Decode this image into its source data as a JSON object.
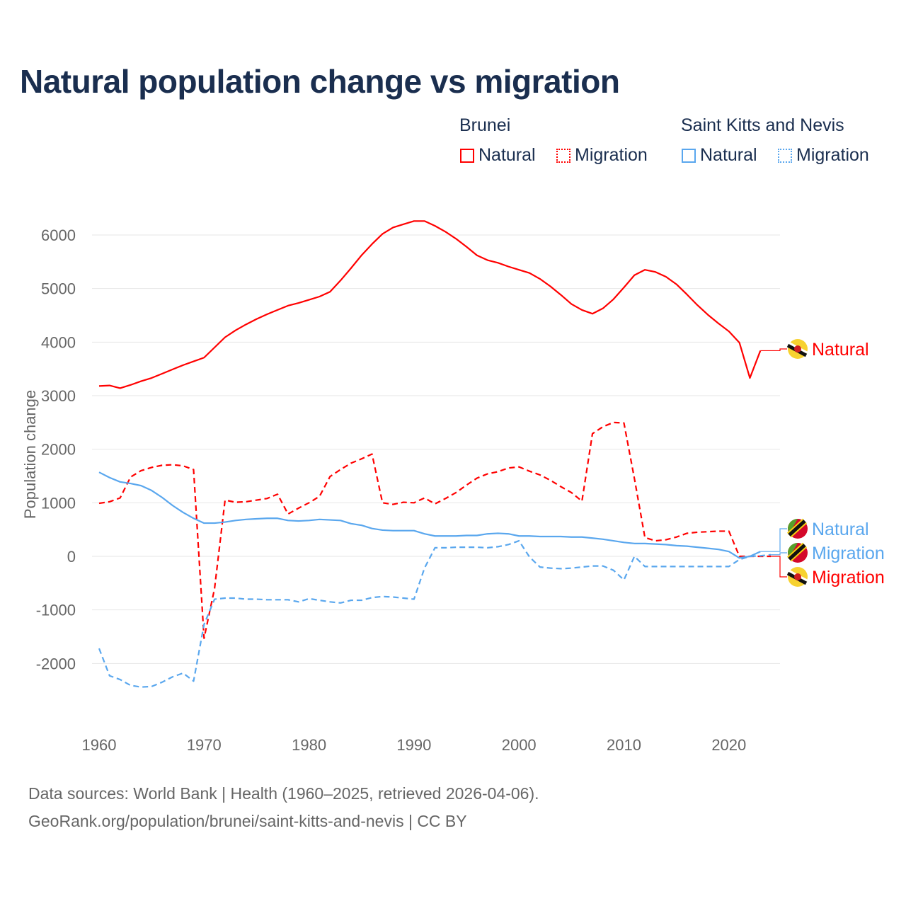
{
  "title": "Natural population change vs migration",
  "legend": {
    "groups": [
      {
        "name": "Brunei",
        "color": "#ff0000",
        "items": [
          "Natural",
          "Migration"
        ]
      },
      {
        "name": "Saint Kitts and Nevis",
        "color": "#5aa7ee",
        "items": [
          "Natural",
          "Migration"
        ]
      }
    ]
  },
  "footer": {
    "line1": "Data sources: World Bank | Health (1960–2025, retrieved 2026-04-06).",
    "line2": "GeoRank.org/population/brunei/saint-kitts-and-nevis | CC BY"
  },
  "chart_data": {
    "type": "line",
    "title": "Natural population change vs migration",
    "xlabel": "",
    "ylabel": "Population change",
    "xlim": [
      1960,
      2025
    ],
    "ylim": [
      -2900,
      6400
    ],
    "x_ticks": [
      1960,
      1970,
      1980,
      1990,
      2000,
      2010,
      2020
    ],
    "y_ticks": [
      -2000,
      -1000,
      0,
      1000,
      2000,
      3000,
      4000,
      5000,
      6000
    ],
    "grid": true,
    "legend_position": "top-right",
    "x_start": 1960,
    "series": [
      {
        "name": "Natural",
        "country": "Brunei",
        "color": "#ff0000",
        "dash": false,
        "end_label": "Natural",
        "values": [
          3180,
          3190,
          3140,
          3200,
          3270,
          3330,
          3410,
          3490,
          3570,
          3640,
          3710,
          3900,
          4090,
          4220,
          4330,
          4430,
          4520,
          4600,
          4680,
          4730,
          4790,
          4850,
          4940,
          5150,
          5380,
          5620,
          5830,
          6020,
          6140,
          6200,
          6260,
          6260,
          6170,
          6060,
          5930,
          5780,
          5620,
          5530,
          5480,
          5410,
          5350,
          5290,
          5180,
          5040,
          4880,
          4710,
          4600,
          4530,
          4630,
          4800,
          5020,
          5250,
          5350,
          5310,
          5220,
          5080,
          4890,
          4690,
          4510,
          4350,
          4200,
          3990,
          3330,
          3840
        ]
      },
      {
        "name": "Migration",
        "country": "Brunei",
        "color": "#ff0000",
        "dash": true,
        "end_label": "Migration",
        "values": [
          990,
          1020,
          1090,
          1480,
          1600,
          1660,
          1700,
          1710,
          1690,
          1620,
          -1530,
          -600,
          1050,
          1010,
          1020,
          1050,
          1080,
          1160,
          790,
          900,
          1000,
          1120,
          1490,
          1620,
          1740,
          1820,
          1910,
          1000,
          970,
          1010,
          1000,
          1090,
          980,
          1080,
          1190,
          1330,
          1460,
          1540,
          1580,
          1650,
          1670,
          1590,
          1520,
          1420,
          1300,
          1190,
          1030,
          2290,
          2420,
          2500,
          2490,
          1450,
          350,
          290,
          310,
          360,
          430,
          450,
          460,
          470,
          470,
          0,
          0,
          0,
          0
        ]
      },
      {
        "name": "Natural",
        "country": "Saint Kitts and Nevis",
        "color": "#5aa7ee",
        "dash": false,
        "end_label": "Natural",
        "values": [
          1570,
          1470,
          1390,
          1360,
          1320,
          1230,
          1100,
          950,
          820,
          710,
          620,
          620,
          640,
          670,
          690,
          700,
          710,
          710,
          670,
          660,
          670,
          690,
          680,
          670,
          610,
          580,
          520,
          490,
          480,
          480,
          480,
          420,
          380,
          380,
          380,
          390,
          390,
          420,
          430,
          420,
          380,
          380,
          370,
          370,
          370,
          360,
          360,
          340,
          320,
          290,
          260,
          240,
          240,
          230,
          220,
          200,
          190,
          170,
          150,
          130,
          90,
          -30,
          0,
          90
        ]
      },
      {
        "name": "Migration",
        "country": "Saint Kitts and Nevis",
        "color": "#5aa7ee",
        "dash": true,
        "end_label": "Migration",
        "values": [
          -1720,
          -2230,
          -2300,
          -2410,
          -2440,
          -2430,
          -2350,
          -2250,
          -2180,
          -2330,
          -1270,
          -800,
          -780,
          -780,
          -800,
          -800,
          -810,
          -810,
          -810,
          -850,
          -790,
          -820,
          -850,
          -870,
          -820,
          -820,
          -770,
          -750,
          -760,
          -780,
          -800,
          -220,
          160,
          160,
          170,
          170,
          170,
          160,
          180,
          220,
          290,
          -10,
          -200,
          -220,
          -230,
          -220,
          -200,
          -180,
          -180,
          -260,
          -440,
          0,
          -190,
          -190,
          -190,
          -190,
          -190,
          -190,
          -190,
          -190,
          -190,
          -60,
          0,
          10,
          30
        ]
      }
    ]
  }
}
